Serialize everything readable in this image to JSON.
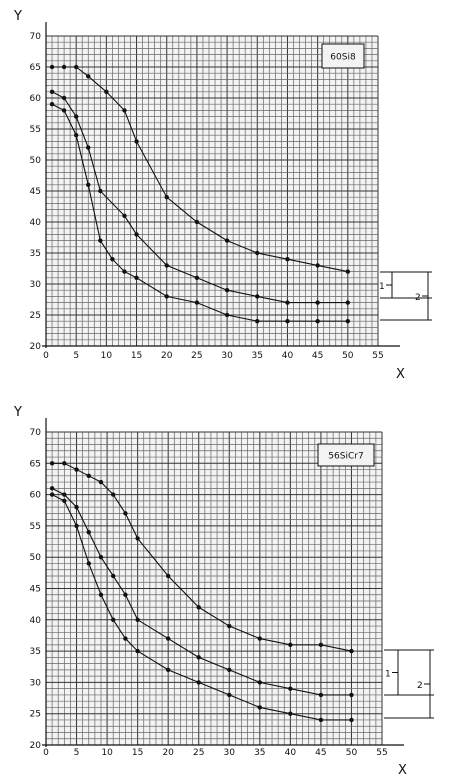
{
  "chart_data": [
    {
      "type": "line",
      "title": "60Si8",
      "xlabel": "X",
      "ylabel": "Y",
      "xlim": [
        0,
        55
      ],
      "ylim": [
        20,
        70
      ],
      "xticks": [
        0,
        5,
        10,
        15,
        20,
        25,
        30,
        35,
        40,
        45,
        50,
        55
      ],
      "yticks": [
        20,
        25,
        30,
        35,
        40,
        45,
        50,
        55,
        60,
        65,
        70
      ],
      "grid": true,
      "series": [
        {
          "x": [
            1,
            3,
            5,
            7,
            10,
            13,
            15,
            20,
            25,
            30,
            35,
            40,
            45,
            50
          ],
          "y": [
            65,
            65,
            65,
            63.5,
            61,
            58,
            53,
            44,
            40,
            37,
            35,
            34,
            33,
            32
          ]
        },
        {
          "x": [
            1,
            3,
            5,
            7,
            9,
            13,
            15,
            20,
            25,
            30,
            35,
            40,
            45,
            50
          ],
          "y": [
            61,
            60,
            57,
            52,
            45,
            41,
            38,
            33,
            31,
            29,
            28,
            27,
            27,
            27
          ]
        },
        {
          "x": [
            1,
            3,
            5,
            7,
            9,
            11,
            13,
            15,
            20,
            25,
            30,
            35,
            40,
            45,
            50
          ],
          "y": [
            59,
            58,
            54,
            46,
            37,
            34,
            32,
            31,
            28,
            27,
            25,
            24,
            24,
            24,
            24
          ]
        }
      ],
      "annotations": [
        "1",
        "2"
      ]
    },
    {
      "type": "line",
      "title": "56SiCr7",
      "xlabel": "X",
      "ylabel": "Y",
      "xlim": [
        0,
        55
      ],
      "ylim": [
        20,
        70
      ],
      "xticks": [
        0,
        5,
        10,
        15,
        20,
        25,
        30,
        35,
        40,
        45,
        50,
        55
      ],
      "yticks": [
        20,
        25,
        30,
        35,
        40,
        45,
        50,
        55,
        60,
        65,
        70
      ],
      "grid": true,
      "series": [
        {
          "x": [
            1,
            3,
            5,
            7,
            9,
            11,
            13,
            15,
            20,
            25,
            30,
            35,
            40,
            45,
            50
          ],
          "y": [
            65,
            65,
            64,
            63,
            62,
            60,
            57,
            53,
            47,
            42,
            39,
            37,
            36,
            36,
            35
          ]
        },
        {
          "x": [
            1,
            3,
            5,
            7,
            9,
            11,
            13,
            15,
            20,
            25,
            30,
            35,
            40,
            45,
            50
          ],
          "y": [
            61,
            60,
            58,
            54,
            50,
            47,
            44,
            40,
            37,
            34,
            32,
            30,
            29,
            28,
            28
          ]
        },
        {
          "x": [
            1,
            3,
            5,
            7,
            9,
            11,
            13,
            15,
            20,
            25,
            30,
            35,
            40,
            45,
            50
          ],
          "y": [
            60,
            59,
            55,
            49,
            44,
            40,
            37,
            35,
            32,
            30,
            28,
            26,
            25,
            24,
            24
          ]
        }
      ],
      "annotations": [
        "1",
        "2"
      ]
    }
  ]
}
